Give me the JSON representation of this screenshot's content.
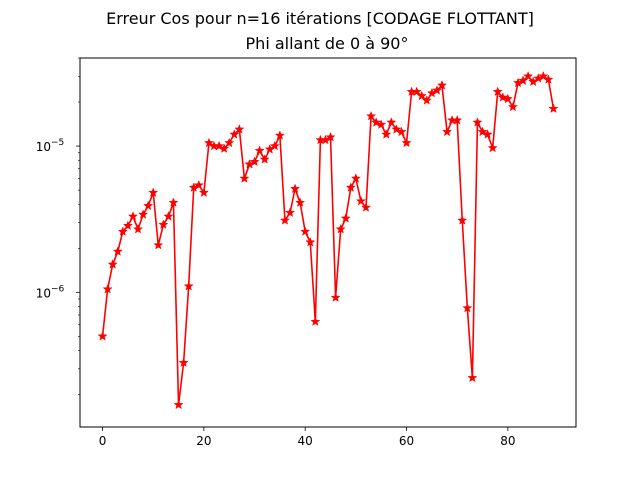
{
  "chart_data": {
    "type": "line",
    "title": "Erreur Cos pour n=16 itérations [CODAGE FLOTTANT]",
    "subtitle": "Phi allant de 0 à 90°",
    "xlabel": "",
    "ylabel": "",
    "x_scale": "linear",
    "y_scale": "log",
    "xlim": [
      -4.45,
      93.45
    ],
    "ylim": [
      1.2e-07,
      4e-05
    ],
    "grid": false,
    "x_ticks": [
      {
        "value": 0,
        "label": "0"
      },
      {
        "value": 20,
        "label": "20"
      },
      {
        "value": 40,
        "label": "40"
      },
      {
        "value": 60,
        "label": "60"
      },
      {
        "value": 80,
        "label": "80"
      }
    ],
    "y_ticks": [
      {
        "value": 1e-06,
        "base": "10",
        "exp": "−6"
      },
      {
        "value": 1e-05,
        "base": "10",
        "exp": "−5"
      }
    ],
    "series": [
      {
        "color": "#ff0000",
        "marker": "star",
        "x": [
          0,
          1,
          2,
          3,
          4,
          5,
          6,
          7,
          8,
          9,
          10,
          11,
          12,
          13,
          14,
          15,
          16,
          17,
          18,
          19,
          20,
          21,
          22,
          23,
          24,
          25,
          26,
          27,
          28,
          29,
          30,
          31,
          32,
          33,
          34,
          35,
          36,
          37,
          38,
          39,
          40,
          41,
          42,
          43,
          44,
          45,
          46,
          47,
          48,
          49,
          50,
          51,
          52,
          53,
          54,
          55,
          56,
          57,
          58,
          59,
          60,
          61,
          62,
          63,
          64,
          65,
          66,
          67,
          68,
          69,
          70,
          71,
          72,
          73,
          74,
          75,
          76,
          77,
          78,
          79,
          80,
          81,
          82,
          83,
          84,
          85,
          86,
          87,
          88,
          89
        ],
        "y": [
          5e-07,
          1.05e-06,
          1.55e-06,
          1.9e-06,
          2.6e-06,
          2.85e-06,
          3.3e-06,
          2.7e-06,
          3.4e-06,
          3.9e-06,
          4.8e-06,
          2.1e-06,
          2.9e-06,
          3.3e-06,
          4.1e-06,
          1.7e-07,
          3.3e-07,
          1.1e-06,
          5.2e-06,
          5.4e-06,
          4.8e-06,
          1.05e-05,
          1e-05,
          1e-05,
          9.6e-06,
          1.05e-05,
          1.2e-05,
          1.3e-05,
          6e-06,
          7.5e-06,
          7.8e-06,
          9.3e-06,
          8.1e-06,
          9.5e-06,
          1e-05,
          1.18e-05,
          3.1e-06,
          3.5e-06,
          5.1e-06,
          4.1e-06,
          2.6e-06,
          2.2e-06,
          6.3e-07,
          1.1e-05,
          1.1e-05,
          1.15e-05,
          9.2e-07,
          2.7e-06,
          3.2e-06,
          5.2e-06,
          6e-06,
          4.2e-06,
          3.8e-06,
          1.6e-05,
          1.45e-05,
          1.4e-05,
          1.2e-05,
          1.45e-05,
          1.3e-05,
          1.25e-05,
          1.05e-05,
          2.35e-05,
          2.35e-05,
          2.2e-05,
          2.05e-05,
          2.3e-05,
          2.4e-05,
          2.6e-05,
          1.25e-05,
          1.5e-05,
          1.5e-05,
          3.1e-06,
          7.8e-07,
          2.6e-07,
          1.45e-05,
          1.25e-05,
          1.2e-05,
          9.7e-06,
          2.35e-05,
          2.15e-05,
          2.1e-05,
          1.85e-05,
          2.7e-05,
          2.8e-05,
          3e-05,
          2.75e-05,
          2.9e-05,
          3e-05,
          2.85e-05,
          1.8e-05
        ]
      }
    ]
  }
}
